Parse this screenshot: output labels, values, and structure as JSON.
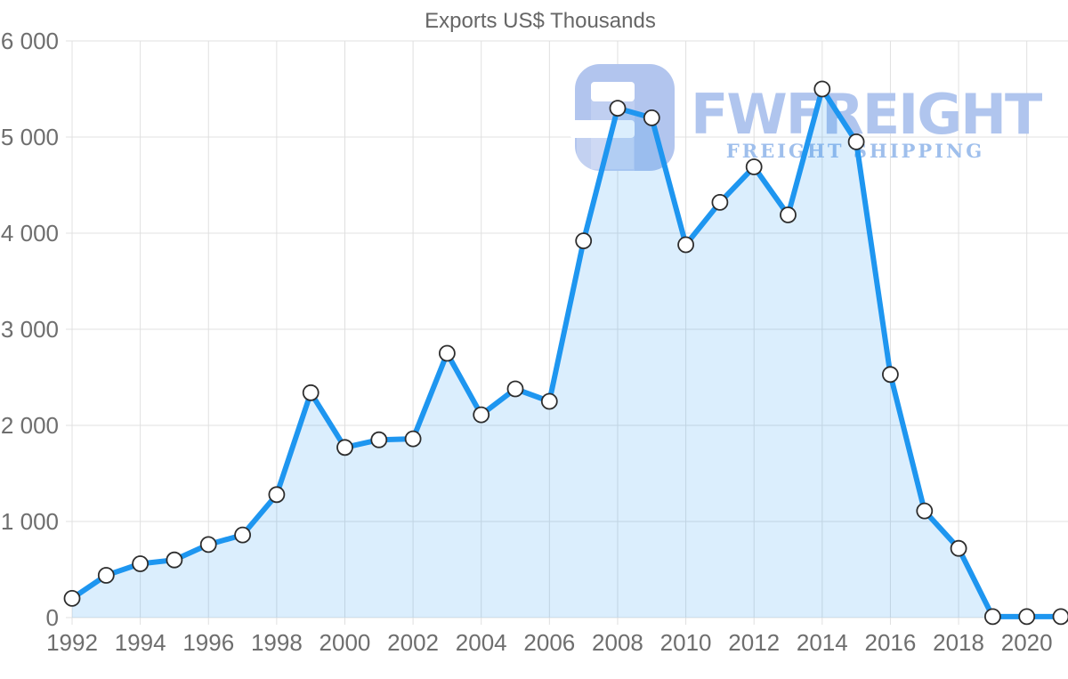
{
  "title": "Exports US$ Thousands",
  "watermark": {
    "brand": "FWFREIGHT",
    "tagline": "FREIGHT SHIPPING",
    "logo_color": "#b2c5ee",
    "brand_color": "#b0c5ee",
    "tagline_color": "#9fbfec"
  },
  "colors": {
    "line": "#1e96f0",
    "fill": "#1e96f0",
    "fill_opacity": 0.16,
    "marker_fill": "#ffffff",
    "marker_stroke": "#2d2d2d",
    "grid": "#e0e0e0",
    "axis_text": "#6e6e6e",
    "title_text": "#666666"
  },
  "chart_data": {
    "type": "area",
    "title": "Exports US$ Thousands",
    "xlabel": "",
    "ylabel": "",
    "x": [
      1992,
      1993,
      1994,
      1995,
      1996,
      1997,
      1998,
      1999,
      2000,
      2001,
      2002,
      2003,
      2004,
      2005,
      2006,
      2007,
      2008,
      2009,
      2010,
      2011,
      2012,
      2013,
      2014,
      2015,
      2016,
      2017,
      2018,
      2019,
      2020,
      2021
    ],
    "values": [
      200,
      440,
      560,
      600,
      760,
      860,
      1280,
      2340,
      1770,
      1850,
      1860,
      2750,
      2110,
      2380,
      2250,
      3920,
      5300,
      5200,
      3880,
      4320,
      4690,
      4190,
      5500,
      4950,
      2530,
      1110,
      720,
      10,
      10,
      10
    ],
    "ylim": [
      0,
      6000
    ],
    "ytick_step": 1000,
    "ytick_labels": [
      "0",
      "1 000",
      "2 000",
      "3 000",
      "4 000",
      "5 000",
      "6 000"
    ],
    "xtick_interval": 2,
    "grid": true,
    "legend_position": "none",
    "marker": "circle"
  }
}
